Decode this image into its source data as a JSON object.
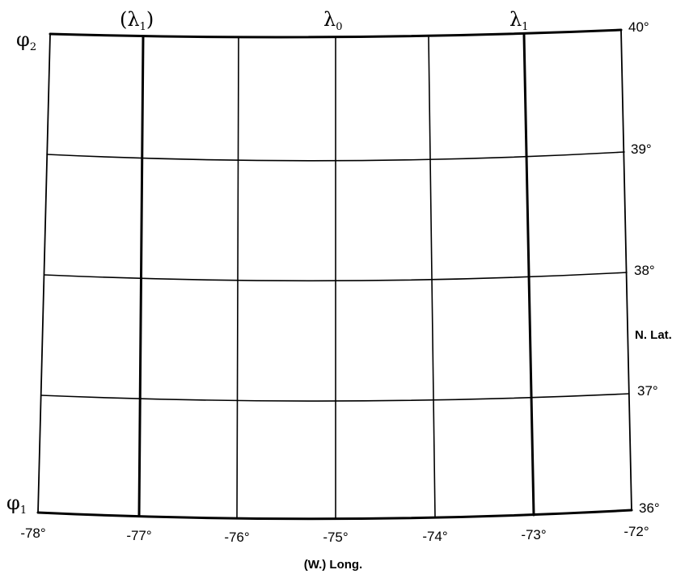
{
  "diagram": {
    "lon_labels": [
      "-78°",
      "-77°",
      "-76°",
      "-75°",
      "-74°",
      "-73°",
      "-72°"
    ],
    "lat_labels": [
      "36°",
      "37°",
      "38°",
      "39°",
      "40°"
    ],
    "x_axis_title": "(W.) Long.",
    "y_axis_title": "N. Lat.",
    "phi_bottom": {
      "symbol": "φ",
      "sub": "1"
    },
    "phi_top": {
      "symbol": "φ",
      "sub": "2"
    },
    "lambda_left": {
      "open": "(",
      "symbol": "λ",
      "sub": "1",
      "close": ")"
    },
    "lambda_center": {
      "symbol": "λ",
      "sub": "0"
    },
    "lambda_right": {
      "symbol": "λ",
      "sub": "1"
    }
  }
}
